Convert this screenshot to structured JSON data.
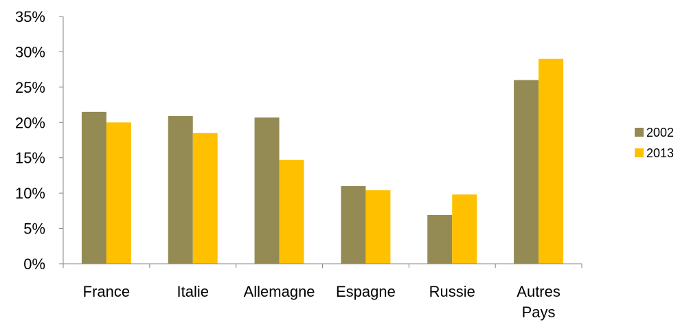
{
  "chart_data": {
    "type": "bar",
    "categories": [
      "France",
      "Italie",
      "Allemagne",
      "Espagne",
      "Russie",
      "Autres Pays"
    ],
    "series": [
      {
        "name": "2002",
        "values": [
          21.5,
          20.9,
          20.7,
          11.0,
          6.9,
          26.0
        ],
        "color": "#948A54"
      },
      {
        "name": "2013",
        "values": [
          20.0,
          18.5,
          14.7,
          10.4,
          9.8,
          29.0
        ],
        "color": "#FFC000"
      }
    ],
    "ylim": [
      0,
      35
    ],
    "yticks": [
      0,
      5,
      10,
      15,
      20,
      25,
      30,
      35
    ],
    "ytick_labels": [
      "0%",
      "5%",
      "10%",
      "15%",
      "20%",
      "25%",
      "30%",
      "35%"
    ],
    "title": "",
    "xlabel": "",
    "ylabel": "",
    "grid": false,
    "legend_position": "right"
  }
}
